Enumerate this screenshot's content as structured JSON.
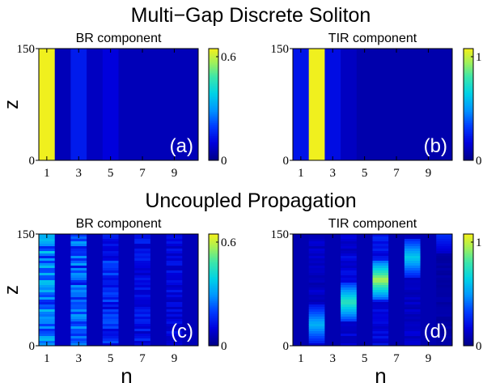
{
  "titles": {
    "top": "Multi−Gap Discrete Soliton",
    "bottom": "Uncoupled Propagation"
  },
  "chart_data": [
    {
      "type": "heatmap",
      "panel_label": "(a)",
      "title": "BR component",
      "ylabel": "z",
      "xlabel": "",
      "xlim": [
        0.5,
        10.5
      ],
      "ylim": [
        0,
        150
      ],
      "xticks": [
        "1",
        "3",
        "5",
        "7",
        "9"
      ],
      "yticks": [
        "0",
        "150"
      ],
      "colorbar": {
        "min": 0,
        "max": 0.6,
        "tick_labels": [
          "0.6",
          "0"
        ]
      },
      "columns": [
        0.6,
        0.05,
        0.13,
        0.06,
        0.09,
        0.05,
        0.05,
        0.05,
        0.05,
        0.05
      ],
      "stripe_columns": []
    },
    {
      "type": "heatmap",
      "panel_label": "(b)",
      "title": "TIR component",
      "ylabel": "",
      "xlabel": "",
      "xlim": [
        0.5,
        10.5
      ],
      "ylim": [
        0,
        150
      ],
      "xticks": [
        "1",
        "3",
        "5",
        "7",
        "9"
      ],
      "yticks": [
        "0",
        "150"
      ],
      "colorbar": {
        "min": 0,
        "max": 1,
        "tick_labels": [
          "1",
          "0"
        ]
      },
      "columns": [
        0.2,
        1.0,
        0.18,
        0.1,
        0.06,
        0.06,
        0.06,
        0.06,
        0.06,
        0.06
      ],
      "stripe_columns": []
    },
    {
      "type": "heatmap",
      "panel_label": "(c)",
      "title": "BR component",
      "ylabel": "z",
      "xlabel": "n",
      "xlim": [
        0.5,
        10.5
      ],
      "ylim": [
        0,
        150
      ],
      "xticks": [
        "1",
        "3",
        "5",
        "7",
        "9"
      ],
      "yticks": [
        "0",
        "150"
      ],
      "colorbar": {
        "min": 0,
        "max": 0.6,
        "tick_labels": [
          "0.6",
          "0"
        ]
      },
      "columns": [
        0.24,
        0.06,
        0.2,
        0.05,
        0.14,
        0.05,
        0.11,
        0.05,
        0.09,
        0.05
      ],
      "stripe_columns": [
        0,
        2,
        4,
        6,
        8
      ]
    },
    {
      "type": "heatmap",
      "panel_label": "(d)",
      "title": "TIR component",
      "ylabel": "",
      "xlabel": "n",
      "xlim": [
        0.5,
        10.5
      ],
      "ylim": [
        0,
        150
      ],
      "xticks": [
        "1",
        "3",
        "5",
        "7",
        "9"
      ],
      "yticks": [
        "0",
        "150"
      ],
      "colorbar": {
        "min": 0,
        "max": 1,
        "tick_labels": [
          "1",
          "0"
        ]
      },
      "columns": [
        0.07,
        0.4,
        0.07,
        0.55,
        0.07,
        0.7,
        0.07,
        0.45,
        0.07,
        0.2
      ],
      "stripe_columns": [
        1,
        3,
        5,
        7,
        9
      ]
    }
  ]
}
